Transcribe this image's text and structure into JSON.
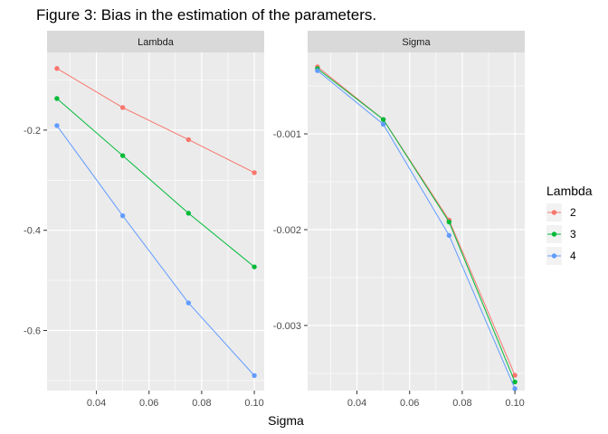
{
  "title": "Figure 3: Bias in the estimation of the parameters.",
  "xlabel": "Sigma",
  "legend": {
    "title": "Lambda",
    "placement": "right",
    "entries": [
      {
        "label": "2",
        "color": "#F8766D"
      },
      {
        "label": "3",
        "color": "#00BA38"
      },
      {
        "label": "4",
        "color": "#619CFF"
      }
    ]
  },
  "chart_data": [
    {
      "type": "line",
      "panel": "Lambda",
      "x": [
        0.025,
        0.05,
        0.075,
        0.1
      ],
      "xticks": [
        0.04,
        0.06,
        0.08,
        0.1
      ],
      "xtick_labels": [
        "0.04",
        "0.06",
        "0.08",
        "0.10"
      ],
      "xlim": [
        0.02125,
        0.10375
      ],
      "yticks": [
        -0.2,
        -0.4,
        -0.6
      ],
      "ytick_labels": [
        "-0.2",
        "-0.4",
        "-0.6"
      ],
      "ylim": [
        -0.72,
        -0.045
      ],
      "grid": true,
      "markers": true,
      "series": [
        {
          "name": "2",
          "color": "#F8766D",
          "values": [
            -0.077,
            -0.155,
            -0.219,
            -0.285
          ]
        },
        {
          "name": "3",
          "color": "#00BA38",
          "values": [
            -0.137,
            -0.251,
            -0.366,
            -0.473
          ]
        },
        {
          "name": "4",
          "color": "#619CFF",
          "values": [
            -0.191,
            -0.371,
            -0.545,
            -0.69
          ]
        }
      ]
    },
    {
      "type": "line",
      "panel": "Sigma",
      "x": [
        0.025,
        0.05,
        0.075,
        0.1
      ],
      "xticks": [
        0.04,
        0.06,
        0.08,
        0.1
      ],
      "xtick_labels": [
        "0.04",
        "0.06",
        "0.08",
        "0.10"
      ],
      "xlim": [
        0.02125,
        0.10375
      ],
      "yticks": [
        -0.001,
        -0.002,
        -0.003
      ],
      "ytick_labels": [
        "-0.001",
        "-0.002",
        "-0.003"
      ],
      "ylim": [
        -0.00368,
        -0.00015
      ],
      "grid": true,
      "markers": true,
      "series": [
        {
          "name": "2",
          "color": "#F8766D",
          "values": [
            -0.0003,
            -0.00085,
            -0.0019,
            -0.00352
          ]
        },
        {
          "name": "3",
          "color": "#00BA38",
          "values": [
            -0.00032,
            -0.00085,
            -0.00192,
            -0.00359
          ]
        },
        {
          "name": "4",
          "color": "#619CFF",
          "values": [
            -0.00034,
            -0.0009,
            -0.00206,
            -0.00366
          ]
        }
      ]
    }
  ]
}
